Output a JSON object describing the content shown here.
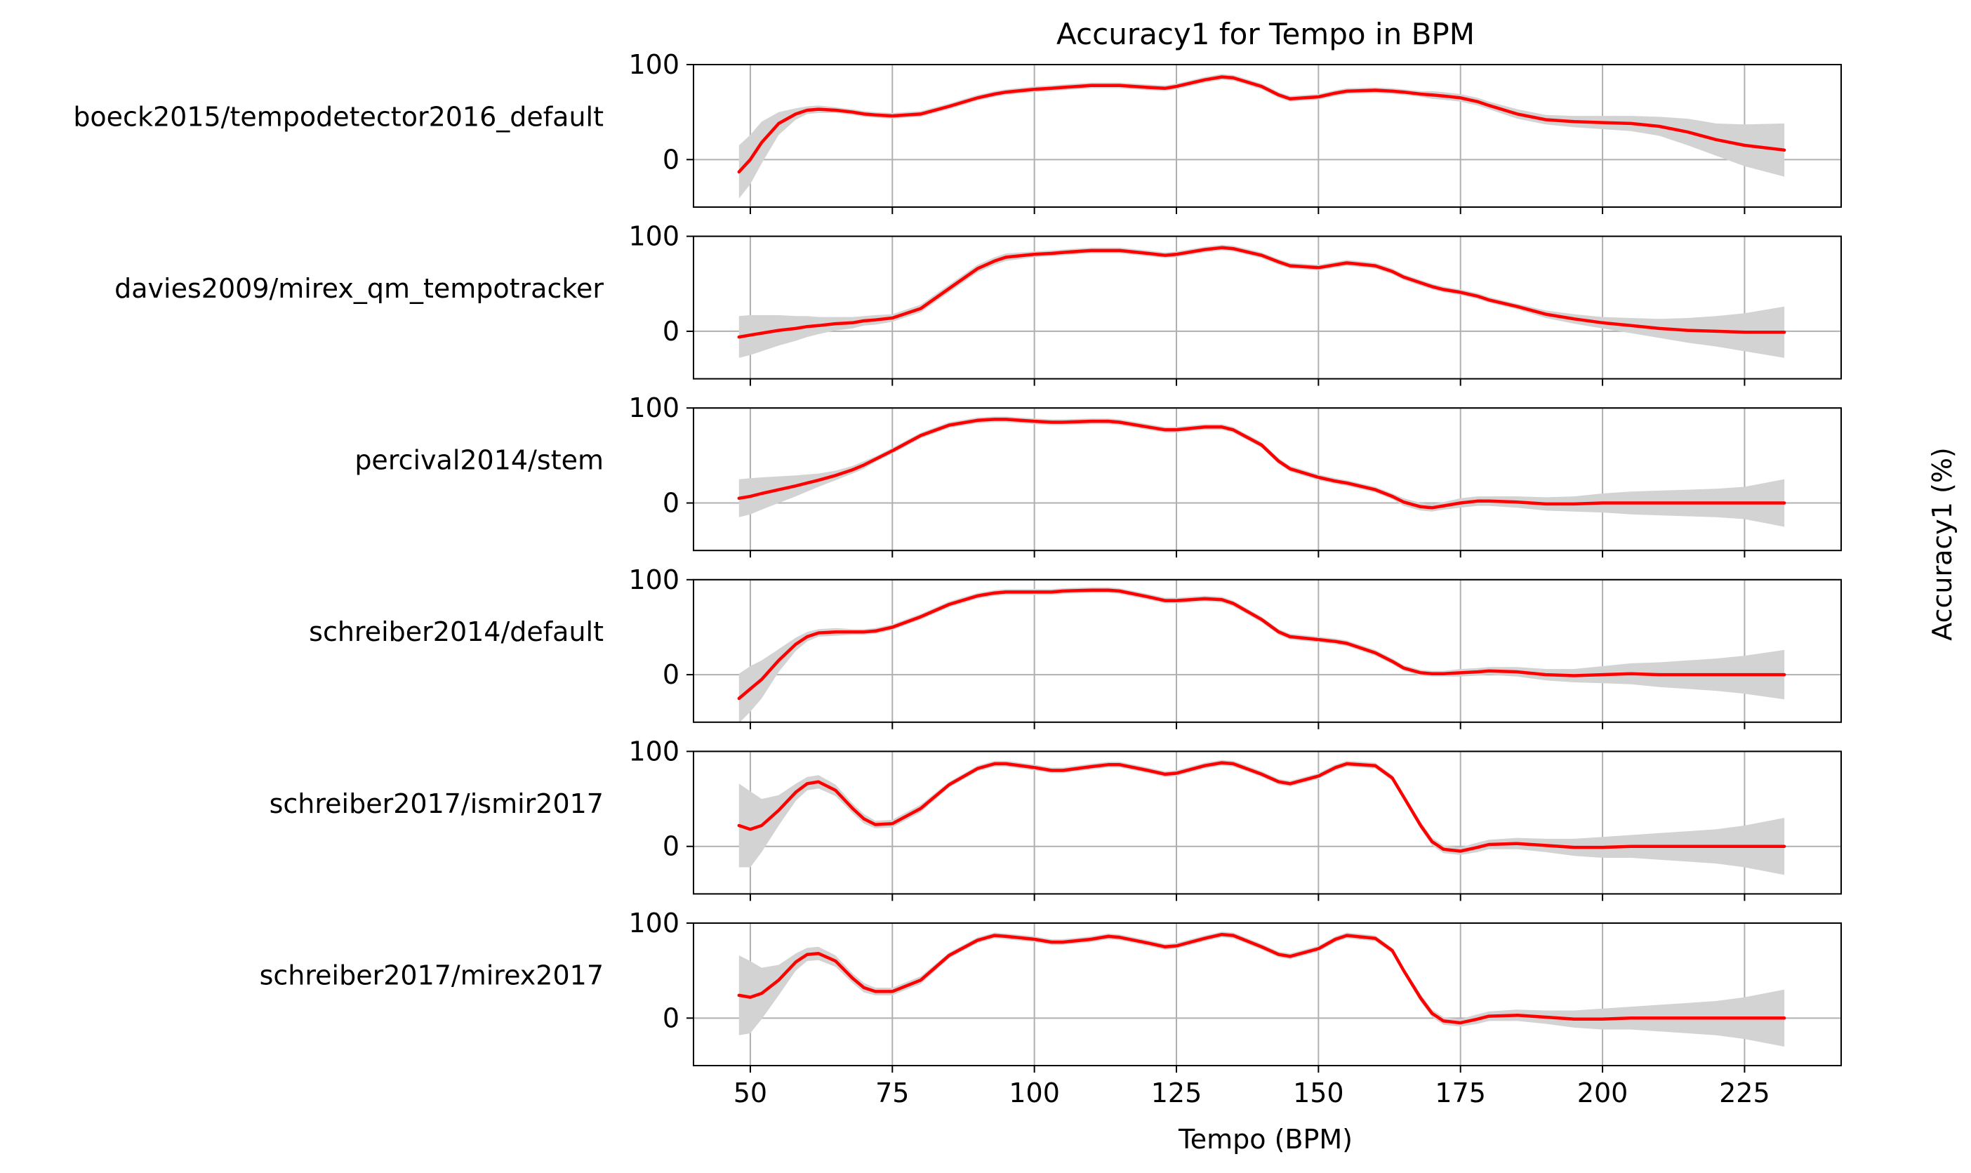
{
  "chart_data": {
    "type": "line",
    "title": "Accuracy1 for Tempo in BPM",
    "xlabel": "Tempo (BPM)",
    "ylabel": "Accuracy1 (%)",
    "xlim": [
      40,
      242
    ],
    "ylim": [
      -50,
      100
    ],
    "x_ticks": [
      50,
      75,
      100,
      125,
      150,
      175,
      200,
      225
    ],
    "y_ticks": [
      0,
      100
    ],
    "grid": true,
    "line_color": "#ff0000",
    "band_color": "#d3d3d3",
    "shared_x": [
      48,
      50,
      52,
      55,
      58,
      60,
      62,
      65,
      68,
      70,
      72,
      75,
      80,
      85,
      90,
      93,
      95,
      100,
      103,
      105,
      110,
      113,
      115,
      120,
      123,
      125,
      130,
      133,
      135,
      140,
      143,
      145,
      150,
      153,
      155,
      160,
      163,
      165,
      168,
      170,
      172,
      175,
      178,
      180,
      185,
      190,
      195,
      200,
      205,
      210,
      215,
      220,
      225,
      232
    ],
    "series": [
      {
        "name": "boeck2015/tempodetector2016_default",
        "values": [
          -13,
          0,
          18,
          38,
          48,
          52,
          53,
          52,
          50,
          48,
          47,
          46,
          48,
          56,
          65,
          69,
          71,
          74,
          75,
          76,
          78,
          78,
          78,
          76,
          75,
          77,
          84,
          87,
          86,
          77,
          68,
          64,
          66,
          70,
          72,
          73,
          72,
          71,
          69,
          68,
          67,
          65,
          61,
          57,
          48,
          42,
          40,
          39,
          38,
          35,
          29,
          21,
          15,
          10
        ],
        "band": [
          28,
          26,
          22,
          12,
          6,
          4,
          4,
          3,
          3,
          3,
          3,
          3,
          3,
          3,
          3,
          3,
          3,
          3,
          3,
          3,
          3,
          3,
          3,
          3,
          3,
          3,
          3,
          3,
          3,
          3,
          3,
          3,
          3,
          3,
          3,
          3,
          3,
          3,
          3,
          4,
          4,
          4,
          4,
          4,
          5,
          5,
          6,
          7,
          8,
          10,
          14,
          17,
          22,
          28
        ]
      },
      {
        "name": "davies2009/mirex_qm_tempotracker",
        "values": [
          -6,
          -4,
          -2,
          1,
          3,
          5,
          6,
          8,
          9,
          11,
          12,
          14,
          24,
          45,
          66,
          74,
          78,
          81,
          82,
          83,
          85,
          85,
          85,
          82,
          80,
          81,
          86,
          88,
          87,
          80,
          73,
          69,
          67,
          70,
          72,
          69,
          63,
          57,
          51,
          47,
          44,
          41,
          37,
          33,
          26,
          18,
          13,
          9,
          6,
          3,
          1,
          0,
          -1,
          -1
        ],
        "band": [
          22,
          21,
          19,
          16,
          13,
          11,
          9,
          7,
          6,
          5,
          5,
          4,
          4,
          4,
          4,
          4,
          4,
          3,
          3,
          3,
          3,
          3,
          3,
          3,
          3,
          3,
          3,
          3,
          3,
          3,
          3,
          3,
          3,
          3,
          3,
          3,
          3,
          3,
          3,
          3,
          3,
          3,
          3,
          3,
          3,
          4,
          5,
          6,
          8,
          10,
          13,
          16,
          20,
          27
        ]
      },
      {
        "name": "percival2014/stem",
        "values": [
          5,
          7,
          10,
          14,
          18,
          21,
          24,
          29,
          35,
          40,
          46,
          55,
          71,
          82,
          87,
          88,
          88,
          86,
          85,
          85,
          86,
          86,
          85,
          80,
          77,
          77,
          80,
          80,
          77,
          61,
          44,
          36,
          27,
          23,
          21,
          14,
          7,
          1,
          -4,
          -5,
          -3,
          0,
          2,
          2,
          1,
          -1,
          -1,
          0,
          0,
          0,
          0,
          0,
          0,
          0
        ],
        "band": [
          20,
          19,
          17,
          14,
          11,
          9,
          7,
          5,
          4,
          4,
          3,
          3,
          3,
          3,
          3,
          3,
          3,
          3,
          3,
          3,
          3,
          3,
          3,
          3,
          3,
          3,
          3,
          3,
          3,
          3,
          3,
          3,
          3,
          3,
          3,
          3,
          3,
          4,
          4,
          4,
          4,
          5,
          5,
          5,
          6,
          7,
          8,
          10,
          12,
          13,
          14,
          15,
          17,
          25
        ]
      },
      {
        "name": "schreiber2014/default",
        "values": [
          -25,
          -15,
          -5,
          15,
          32,
          40,
          44,
          45,
          45,
          45,
          46,
          50,
          61,
          74,
          83,
          86,
          87,
          87,
          87,
          88,
          89,
          89,
          88,
          82,
          78,
          78,
          80,
          79,
          75,
          58,
          45,
          40,
          37,
          35,
          33,
          23,
          14,
          7,
          2,
          1,
          1,
          2,
          3,
          4,
          3,
          0,
          -1,
          0,
          1,
          0,
          0,
          0,
          0,
          0
        ],
        "band": [
          26,
          24,
          20,
          12,
          7,
          5,
          4,
          4,
          3,
          3,
          3,
          3,
          3,
          3,
          3,
          3,
          3,
          3,
          3,
          3,
          3,
          3,
          3,
          3,
          3,
          3,
          3,
          3,
          3,
          3,
          3,
          3,
          3,
          3,
          3,
          3,
          3,
          3,
          3,
          3,
          3,
          4,
          4,
          4,
          5,
          6,
          7,
          9,
          11,
          13,
          15,
          17,
          20,
          26
        ]
      },
      {
        "name": "schreiber2017/ismir2017",
        "values": [
          22,
          18,
          22,
          38,
          57,
          66,
          68,
          59,
          40,
          29,
          23,
          24,
          40,
          65,
          82,
          87,
          87,
          83,
          80,
          80,
          84,
          86,
          86,
          80,
          76,
          77,
          85,
          88,
          87,
          76,
          68,
          66,
          74,
          83,
          87,
          85,
          72,
          52,
          22,
          5,
          -3,
          -5,
          -1,
          2,
          3,
          1,
          -1,
          -1,
          0,
          0,
          0,
          0,
          0,
          0
        ],
        "band": [
          44,
          40,
          28,
          16,
          9,
          7,
          7,
          6,
          5,
          5,
          4,
          4,
          4,
          3,
          3,
          3,
          3,
          3,
          3,
          3,
          3,
          3,
          3,
          3,
          3,
          3,
          3,
          3,
          3,
          3,
          3,
          3,
          3,
          3,
          3,
          3,
          3,
          3,
          4,
          4,
          4,
          4,
          5,
          5,
          6,
          7,
          9,
          11,
          12,
          14,
          16,
          18,
          22,
          30
        ]
      },
      {
        "name": "schreiber2017/mirex2017",
        "values": [
          24,
          22,
          26,
          40,
          59,
          67,
          68,
          60,
          42,
          32,
          28,
          28,
          40,
          66,
          82,
          87,
          86,
          83,
          80,
          80,
          83,
          86,
          85,
          79,
          75,
          76,
          84,
          88,
          87,
          75,
          67,
          65,
          73,
          83,
          87,
          84,
          71,
          50,
          21,
          5,
          -3,
          -5,
          -1,
          2,
          3,
          1,
          -1,
          -1,
          0,
          0,
          0,
          0,
          0,
          0
        ],
        "band": [
          42,
          38,
          27,
          16,
          9,
          7,
          7,
          6,
          5,
          5,
          4,
          4,
          4,
          3,
          3,
          3,
          3,
          3,
          3,
          3,
          3,
          3,
          3,
          3,
          3,
          3,
          3,
          3,
          3,
          3,
          3,
          3,
          3,
          3,
          3,
          3,
          3,
          3,
          4,
          4,
          4,
          4,
          5,
          5,
          6,
          7,
          9,
          11,
          12,
          14,
          16,
          18,
          22,
          30
        ]
      }
    ]
  }
}
